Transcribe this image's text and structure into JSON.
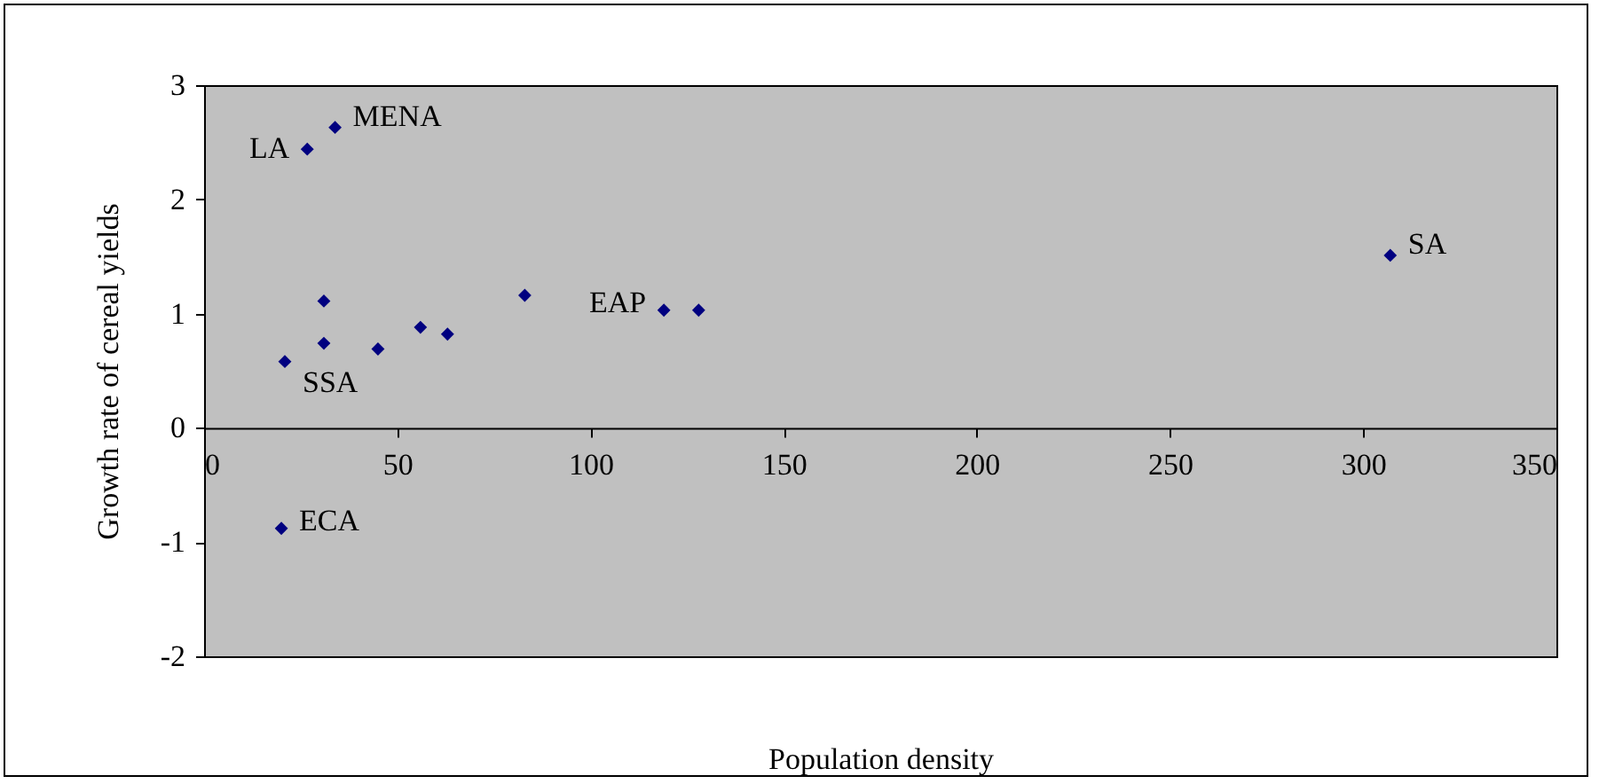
{
  "chart_data": {
    "type": "scatter",
    "xlabel": "Population density",
    "ylabel": "Growth rate of cereal yields",
    "x": [
      26.7,
      33.9,
      31,
      83,
      119,
      128,
      56,
      63,
      31,
      45,
      20.9,
      20,
      307
    ],
    "series": [
      {
        "color": "#000080",
        "values": [
          2.44,
          2.63,
          1.11,
          1.16,
          1.03,
          1.03,
          0.88,
          0.82,
          0.74,
          0.69,
          0.58,
          -0.88,
          1.51
        ]
      }
    ],
    "xlim": [
      0,
      350
    ],
    "xticks": [
      0,
      50,
      100,
      150,
      200,
      250,
      300,
      350
    ],
    "ylim": [
      -2,
      3
    ],
    "yticks": [
      -2,
      -1,
      0,
      1,
      2,
      3
    ],
    "marker": "diamond",
    "grid": false,
    "annotations": [
      {
        "text": "LA",
        "x": 26.7,
        "y": 2.44
      },
      {
        "text": "MENA",
        "x": 33.9,
        "y": 2.63
      },
      {
        "text": "EAP",
        "x": 119,
        "y": 1.03
      },
      {
        "text": "SA",
        "x": 307,
        "y": 1.51
      },
      {
        "text": "SSA",
        "x": 20.9,
        "y": 0.58
      },
      {
        "text": "ECA",
        "x": 20,
        "y": -0.88
      }
    ]
  }
}
